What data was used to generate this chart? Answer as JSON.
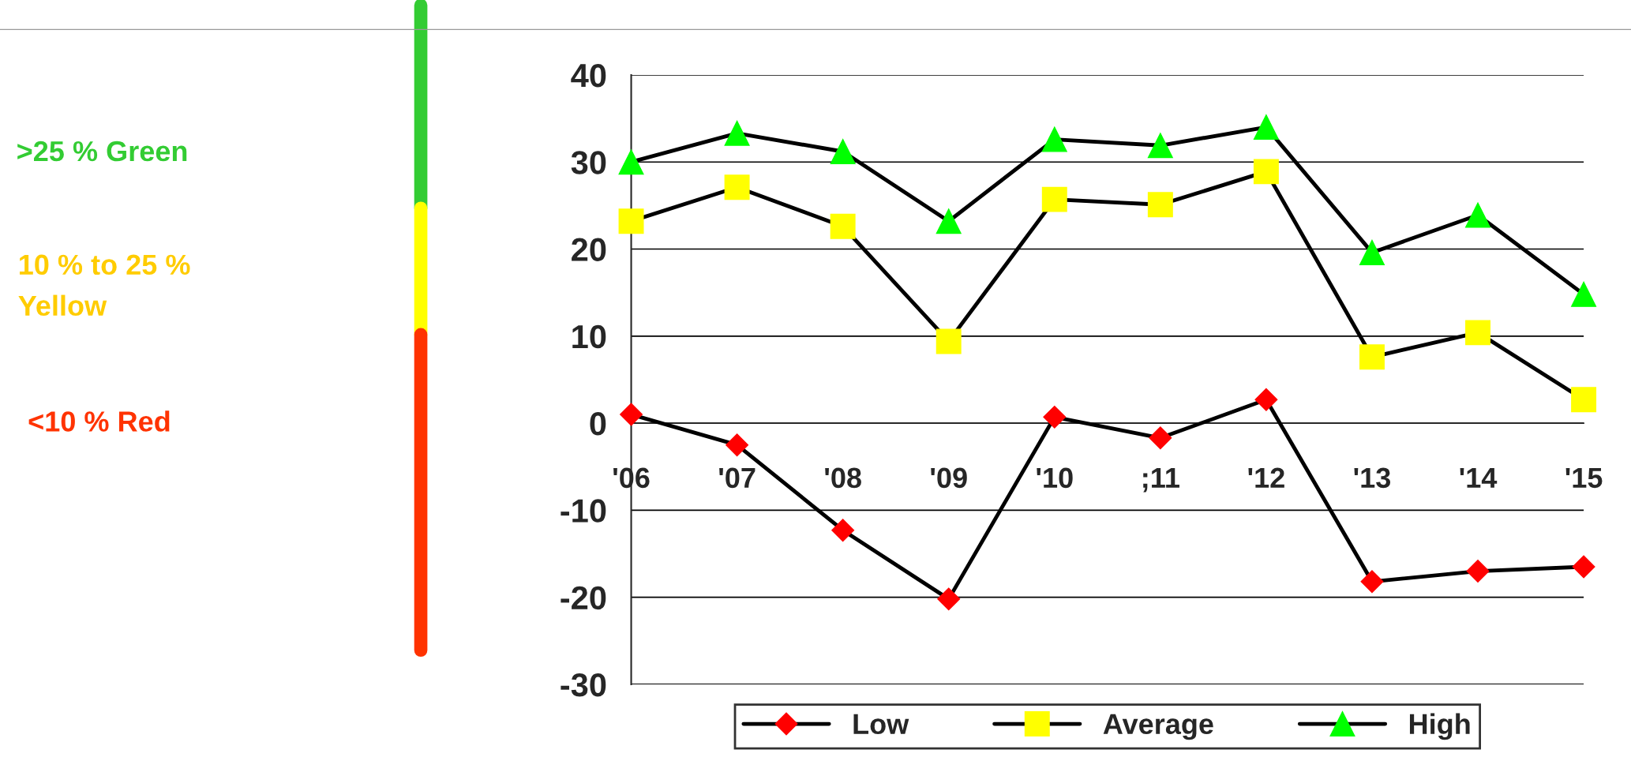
{
  "chart_data": {
    "type": "line",
    "categories": [
      "'06",
      "'07",
      "'08",
      "'09",
      "'10",
      ";11",
      "'12",
      "'13",
      "'14",
      "'15"
    ],
    "series": [
      {
        "name": "Low",
        "color": "#ff0000",
        "marker": "diamond",
        "values": [
          1,
          -2.5,
          -12.3,
          -20.2,
          0.7,
          -1.7,
          2.7,
          -18.2,
          -17,
          -16.5
        ]
      },
      {
        "name": "Average",
        "color": "#ffff00",
        "marker": "square",
        "values": [
          23.2,
          27.1,
          22.6,
          9.4,
          25.7,
          25.1,
          28.9,
          7.6,
          10.4,
          2.7
        ]
      },
      {
        "name": "High",
        "color": "#00ff00",
        "marker": "triangle",
        "values": [
          30,
          33.3,
          31.2,
          23.2,
          32.6,
          31.9,
          34,
          19.6,
          23.9,
          14.8
        ]
      }
    ],
    "ylim": [
      -30,
      40
    ],
    "yticks": [
      -30,
      -20,
      -10,
      0,
      10,
      20,
      30,
      40
    ],
    "grid": "y",
    "legend": "bottom",
    "annotations": [
      ">25 % Green",
      "10 % to 25 %\nYellow",
      "<10 % Red"
    ]
  }
}
